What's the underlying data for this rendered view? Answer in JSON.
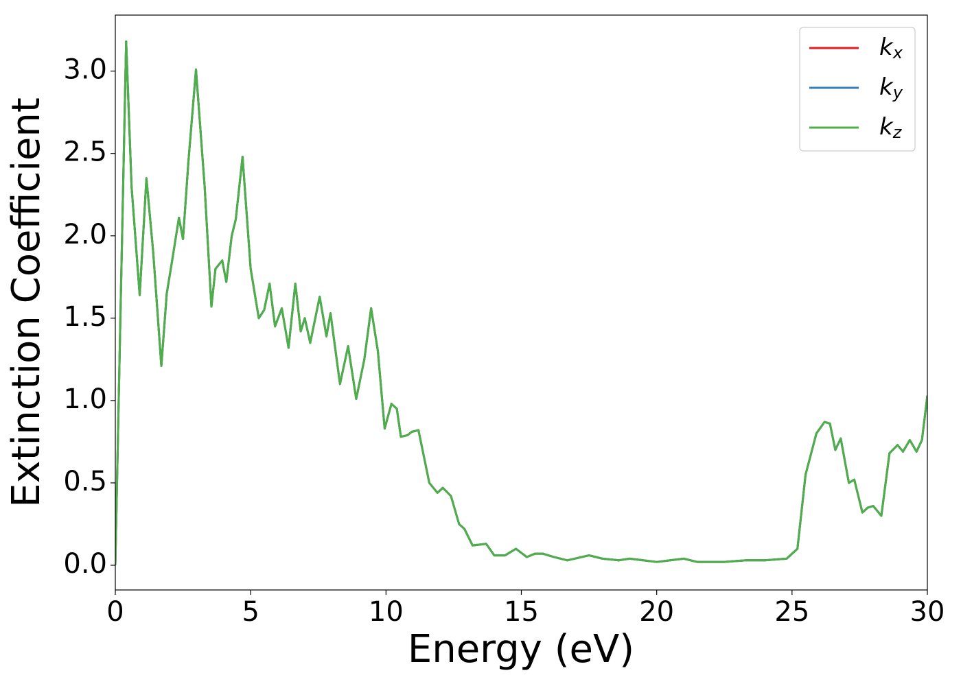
{
  "chart_data": {
    "type": "line",
    "x_label": "Energy (eV)",
    "y_label": "Extinction Coefficient",
    "x": [
      0,
      0.2,
      0.4,
      0.6,
      0.9,
      1.15,
      1.4,
      1.7,
      1.9,
      2.1,
      2.35,
      2.5,
      2.7,
      2.98,
      3.3,
      3.55,
      3.7,
      3.95,
      4.1,
      4.3,
      4.45,
      4.7,
      5.0,
      5.3,
      5.5,
      5.7,
      5.9,
      6.15,
      6.4,
      6.65,
      6.85,
      7.0,
      7.2,
      7.55,
      7.8,
      7.95,
      8.3,
      8.6,
      8.9,
      9.2,
      9.45,
      9.7,
      9.95,
      10.2,
      10.4,
      10.55,
      10.8,
      10.95,
      11.2,
      11.35,
      11.6,
      11.9,
      12.1,
      12.4,
      12.7,
      12.9,
      13.2,
      13.7,
      14.0,
      14.4,
      14.8,
      15.2,
      15.5,
      15.8,
      16.2,
      16.7,
      17.5,
      18.0,
      18.6,
      19.0,
      19.5,
      20.0,
      20.5,
      21.0,
      21.5,
      22.5,
      23.3,
      24.0,
      24.8,
      25.2,
      25.5,
      25.9,
      26.2,
      26.4,
      26.6,
      26.8,
      27.1,
      27.3,
      27.6,
      27.8,
      28.0,
      28.3,
      28.6,
      28.9,
      29.1,
      29.35,
      29.6,
      29.8,
      30.0
    ],
    "series": [
      {
        "name": "kx",
        "color": "#e41a1c",
        "values": [
          0,
          1.6,
          3.18,
          2.3,
          1.64,
          2.35,
          1.9,
          1.21,
          1.65,
          1.85,
          2.11,
          1.98,
          2.45,
          3.01,
          2.3,
          1.57,
          1.8,
          1.85,
          1.72,
          2.0,
          2.1,
          2.48,
          1.8,
          1.5,
          1.55,
          1.71,
          1.45,
          1.56,
          1.32,
          1.71,
          1.42,
          1.5,
          1.35,
          1.63,
          1.39,
          1.53,
          1.1,
          1.33,
          1.01,
          1.25,
          1.56,
          1.3,
          0.83,
          0.98,
          0.95,
          0.78,
          0.79,
          0.81,
          0.82,
          0.7,
          0.5,
          0.44,
          0.47,
          0.42,
          0.25,
          0.22,
          0.12,
          0.13,
          0.06,
          0.06,
          0.1,
          0.05,
          0.07,
          0.07,
          0.05,
          0.03,
          0.06,
          0.04,
          0.03,
          0.04,
          0.03,
          0.02,
          0.03,
          0.04,
          0.02,
          0.02,
          0.03,
          0.03,
          0.04,
          0.1,
          0.55,
          0.8,
          0.87,
          0.86,
          0.7,
          0.77,
          0.5,
          0.52,
          0.32,
          0.35,
          0.36,
          0.3,
          0.68,
          0.73,
          0.69,
          0.76,
          0.69,
          0.76,
          1.03
        ]
      },
      {
        "name": "ky",
        "color": "#377eb8",
        "values": [
          0,
          1.6,
          3.18,
          2.3,
          1.64,
          2.35,
          1.9,
          1.21,
          1.65,
          1.85,
          2.11,
          1.98,
          2.45,
          3.01,
          2.3,
          1.57,
          1.8,
          1.85,
          1.72,
          2.0,
          2.1,
          2.48,
          1.8,
          1.5,
          1.55,
          1.71,
          1.45,
          1.56,
          1.32,
          1.71,
          1.42,
          1.5,
          1.35,
          1.63,
          1.39,
          1.53,
          1.1,
          1.33,
          1.01,
          1.25,
          1.56,
          1.3,
          0.83,
          0.98,
          0.95,
          0.78,
          0.79,
          0.81,
          0.82,
          0.7,
          0.5,
          0.44,
          0.47,
          0.42,
          0.25,
          0.22,
          0.12,
          0.13,
          0.06,
          0.06,
          0.1,
          0.05,
          0.07,
          0.07,
          0.05,
          0.03,
          0.06,
          0.04,
          0.03,
          0.04,
          0.03,
          0.02,
          0.03,
          0.04,
          0.02,
          0.02,
          0.03,
          0.03,
          0.04,
          0.1,
          0.55,
          0.8,
          0.87,
          0.86,
          0.7,
          0.77,
          0.5,
          0.52,
          0.32,
          0.35,
          0.36,
          0.3,
          0.68,
          0.73,
          0.69,
          0.76,
          0.69,
          0.76,
          1.03
        ]
      },
      {
        "name": "kz",
        "color": "#4daf4a",
        "values": [
          0,
          1.6,
          3.18,
          2.3,
          1.64,
          2.35,
          1.9,
          1.21,
          1.65,
          1.85,
          2.11,
          1.98,
          2.45,
          3.01,
          2.3,
          1.57,
          1.8,
          1.85,
          1.72,
          2.0,
          2.1,
          2.48,
          1.8,
          1.5,
          1.55,
          1.71,
          1.45,
          1.56,
          1.32,
          1.71,
          1.42,
          1.5,
          1.35,
          1.63,
          1.39,
          1.53,
          1.1,
          1.33,
          1.01,
          1.25,
          1.56,
          1.3,
          0.83,
          0.98,
          0.95,
          0.78,
          0.79,
          0.81,
          0.82,
          0.7,
          0.5,
          0.44,
          0.47,
          0.42,
          0.25,
          0.22,
          0.12,
          0.13,
          0.06,
          0.06,
          0.1,
          0.05,
          0.07,
          0.07,
          0.05,
          0.03,
          0.06,
          0.04,
          0.03,
          0.04,
          0.03,
          0.02,
          0.03,
          0.04,
          0.02,
          0.02,
          0.03,
          0.03,
          0.04,
          0.1,
          0.55,
          0.8,
          0.87,
          0.86,
          0.7,
          0.77,
          0.5,
          0.52,
          0.32,
          0.35,
          0.36,
          0.3,
          0.68,
          0.73,
          0.69,
          0.76,
          0.69,
          0.76,
          1.03
        ]
      }
    ],
    "xlim": [
      0,
      30
    ],
    "xticks": [
      0,
      5,
      10,
      15,
      20,
      25,
      30
    ],
    "ylim": [
      -0.15,
      3.34
    ],
    "yticks": [
      {
        "value": 0,
        "label": "0.0"
      },
      {
        "value": 0.5,
        "label": "0.5"
      },
      {
        "value": 1,
        "label": "1.0"
      },
      {
        "value": 1.5,
        "label": "1.5"
      },
      {
        "value": 2,
        "label": "2.0"
      },
      {
        "value": 2.5,
        "label": "2.5"
      },
      {
        "value": 3,
        "label": "3.0"
      }
    ],
    "grid": false,
    "legend": "upper right"
  }
}
